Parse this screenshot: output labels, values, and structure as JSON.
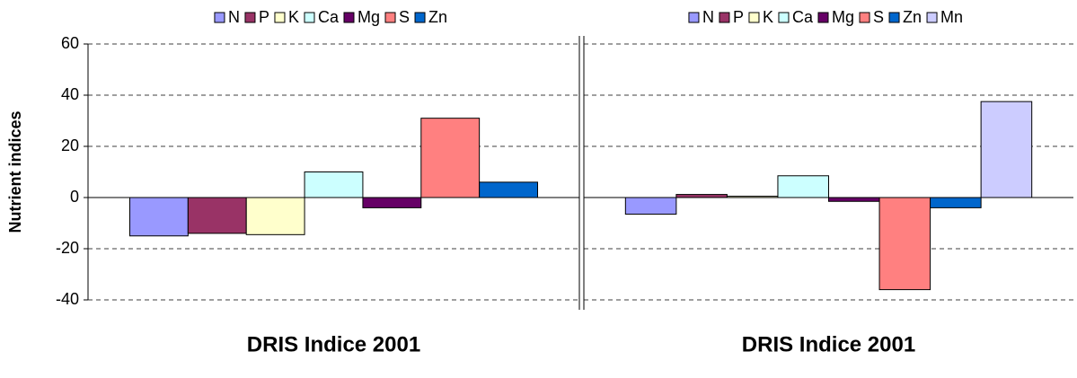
{
  "chart_data": [
    {
      "type": "bar",
      "y_label": "Nutrient indices",
      "x_label": "DRIS Indice 2001",
      "ylim": [
        -40,
        60
      ],
      "yticks": [
        -40,
        -20,
        0,
        20,
        40,
        60
      ],
      "grid": true,
      "legend": "top",
      "series": [
        {
          "name": "N",
          "color": "#9999ff",
          "values": [
            -15
          ]
        },
        {
          "name": "P",
          "color": "#993366",
          "values": [
            -14
          ]
        },
        {
          "name": "K",
          "color": "#ffffcc",
          "values": [
            -14.5
          ]
        },
        {
          "name": "Ca",
          "color": "#ccffff",
          "values": [
            10
          ]
        },
        {
          "name": "Mg",
          "color": "#660066",
          "values": [
            -4
          ]
        },
        {
          "name": "S",
          "color": "#ff8080",
          "values": [
            31
          ]
        },
        {
          "name": "Zn",
          "color": "#0066cc",
          "values": [
            6
          ]
        }
      ]
    },
    {
      "type": "bar",
      "x_label": "DRIS Indice 2001",
      "ylim": [
        -40,
        60
      ],
      "yticks": [
        -40,
        -20,
        0,
        20,
        40,
        60
      ],
      "grid": true,
      "legend": "top",
      "series": [
        {
          "name": "N",
          "color": "#9999ff",
          "values": [
            -6.5
          ]
        },
        {
          "name": "P",
          "color": "#993366",
          "values": [
            1.2
          ]
        },
        {
          "name": "K",
          "color": "#ffffcc",
          "values": [
            0.5
          ]
        },
        {
          "name": "Ca",
          "color": "#ccffff",
          "values": [
            8.5
          ]
        },
        {
          "name": "Mg",
          "color": "#660066",
          "values": [
            -1.5
          ]
        },
        {
          "name": "S",
          "color": "#ff8080",
          "values": [
            -36
          ]
        },
        {
          "name": "Zn",
          "color": "#0066cc",
          "values": [
            -4
          ]
        },
        {
          "name": "Mn",
          "color": "#ccccff",
          "values": [
            37.5
          ]
        }
      ]
    }
  ]
}
